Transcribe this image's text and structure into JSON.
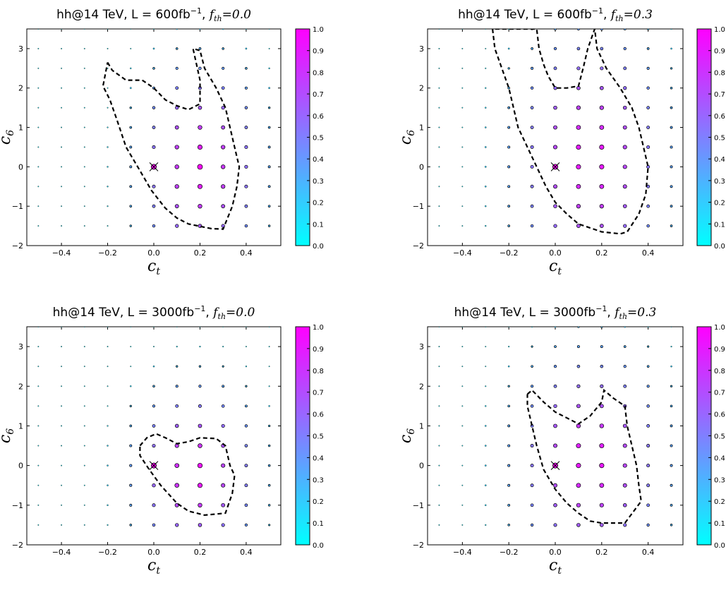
{
  "chart_data": [
    {
      "type": "scatter",
      "title": "hh@14 TeV, L = 600fb",
      "title_sup": "−1",
      "title_f": "f",
      "title_f_sub": "th",
      "title_f_value": "=0.0",
      "xlabel": "c",
      "xlabel_sub": "t",
      "ylabel": "c",
      "ylabel_sub": "6",
      "xlim": [
        -0.55,
        0.55
      ],
      "ylim": [
        -2,
        3.5
      ],
      "xticks": [
        -0.4,
        -0.2,
        0.0,
        0.2,
        0.4
      ],
      "xtick_labels": [
        "−0.4",
        "−0.2",
        "0.0",
        "0.2",
        "0.4"
      ],
      "yticks": [
        -2,
        -1,
        0,
        1,
        2,
        3
      ],
      "ytick_labels": [
        "−2",
        "−1",
        "0",
        "1",
        "2",
        "3"
      ],
      "colorbar": {
        "range": [
          0,
          1
        ],
        "ticks": [
          "0.0",
          "0.1",
          "0.2",
          "0.3",
          "0.4",
          "0.5",
          "0.6",
          "0.7",
          "0.8",
          "0.9",
          "1.0"
        ],
        "colormap": [
          "#00ffff",
          "#ff00ff"
        ]
      },
      "grid_x": [
        -0.5,
        -0.4,
        -0.3,
        -0.2,
        -0.1,
        0.0,
        0.1,
        0.2,
        0.3,
        0.4,
        0.5
      ],
      "grid_y": [
        -1.5,
        -1.0,
        -0.5,
        0.0,
        0.5,
        1.0,
        1.5,
        2.0,
        2.5,
        3.0,
        3.5
      ],
      "sm_point": [
        0,
        0
      ],
      "center": [
        0.2,
        0
      ],
      "radius": [
        0.25,
        2.4
      ],
      "contour": [
        [
          -0.2,
          2.65
        ],
        [
          -0.18,
          2.45
        ],
        [
          -0.12,
          2.2
        ],
        [
          -0.05,
          2.2
        ],
        [
          0.0,
          2.0
        ],
        [
          0.05,
          1.7
        ],
        [
          0.1,
          1.55
        ],
        [
          0.15,
          1.45
        ],
        [
          0.2,
          1.6
        ],
        [
          0.2,
          2.2
        ],
        [
          0.17,
          3.0
        ],
        [
          0.2,
          2.95
        ],
        [
          0.22,
          2.5
        ],
        [
          0.27,
          2.0
        ],
        [
          0.31,
          1.5
        ],
        [
          0.33,
          1.0
        ],
        [
          0.35,
          0.5
        ],
        [
          0.37,
          0.0
        ],
        [
          0.36,
          -0.5
        ],
        [
          0.34,
          -1.0
        ],
        [
          0.3,
          -1.58
        ],
        [
          0.25,
          -1.57
        ],
        [
          0.15,
          -1.45
        ],
        [
          0.1,
          -1.3
        ],
        [
          0.05,
          -1.05
        ],
        [
          -0.01,
          -0.6
        ],
        [
          -0.06,
          -0.1
        ],
        [
          -0.12,
          0.5
        ],
        [
          -0.16,
          1.2
        ],
        [
          -0.19,
          1.7
        ],
        [
          -0.22,
          2.05
        ],
        [
          -0.2,
          2.65
        ]
      ]
    },
    {
      "type": "scatter",
      "title": "hh@14 TeV, L = 600fb",
      "title_sup": "−1",
      "title_f": "f",
      "title_f_sub": "th",
      "title_f_value": "=0.3",
      "xlabel": "c",
      "xlabel_sub": "t",
      "ylabel": "c",
      "ylabel_sub": "6",
      "xlim": [
        -0.55,
        0.55
      ],
      "ylim": [
        -2,
        3.5
      ],
      "xticks": [
        -0.4,
        -0.2,
        0.0,
        0.2,
        0.4
      ],
      "xtick_labels": [
        "−0.4",
        "−0.2",
        "0.0",
        "0.2",
        "0.4"
      ],
      "yticks": [
        -2,
        -1,
        0,
        1,
        2,
        3
      ],
      "ytick_labels": [
        "−2",
        "−1",
        "0",
        "1",
        "2",
        "3"
      ],
      "colorbar": {
        "range": [
          0,
          1
        ],
        "ticks": [
          "0.0",
          "0.1",
          "0.2",
          "0.3",
          "0.4",
          "0.5",
          "0.6",
          "0.7",
          "0.8",
          "0.9",
          "1.0"
        ],
        "colormap": [
          "#00ffff",
          "#ff00ff"
        ]
      },
      "grid_x": [
        -0.5,
        -0.4,
        -0.3,
        -0.2,
        -0.1,
        0.0,
        0.1,
        0.2,
        0.3,
        0.4,
        0.5
      ],
      "grid_y": [
        -1.5,
        -1.0,
        -0.5,
        0.0,
        0.5,
        1.0,
        1.5,
        2.0,
        2.5,
        3.0,
        3.5
      ],
      "sm_point": [
        0,
        0
      ],
      "center": [
        0.15,
        0.2
      ],
      "radius": [
        0.3,
        3.0
      ],
      "contour": [
        [
          -0.27,
          3.5
        ],
        [
          -0.26,
          3.0
        ],
        [
          -0.23,
          2.5
        ],
        [
          -0.2,
          2.0
        ],
        [
          -0.18,
          1.5
        ],
        [
          -0.16,
          1.0
        ],
        [
          -0.12,
          0.5
        ],
        [
          -0.08,
          0.0
        ],
        [
          -0.04,
          -0.5
        ],
        [
          0.0,
          -0.9
        ],
        [
          0.05,
          -1.2
        ],
        [
          0.1,
          -1.45
        ],
        [
          0.2,
          -1.65
        ],
        [
          0.28,
          -1.7
        ],
        [
          0.31,
          -1.65
        ],
        [
          0.36,
          -1.2
        ],
        [
          0.39,
          -0.7
        ],
        [
          0.4,
          0.0
        ],
        [
          0.38,
          0.5
        ],
        [
          0.36,
          1.0
        ],
        [
          0.33,
          1.5
        ],
        [
          0.28,
          2.0
        ],
        [
          0.22,
          2.5
        ],
        [
          0.18,
          3.0
        ],
        [
          0.17,
          3.5
        ],
        [
          0.14,
          3.0
        ],
        [
          0.12,
          2.5
        ],
        [
          0.1,
          2.05
        ],
        [
          0.05,
          2.0
        ],
        [
          0.0,
          2.0
        ],
        [
          -0.03,
          2.3
        ],
        [
          -0.05,
          2.6
        ],
        [
          -0.07,
          3.0
        ],
        [
          -0.08,
          3.5
        ],
        [
          -0.27,
          3.5
        ]
      ]
    },
    {
      "type": "scatter",
      "title": "hh@14 TeV, L = 3000fb",
      "title_sup": "−1",
      "title_f": "f",
      "title_f_sub": "th",
      "title_f_value": "=0.0",
      "xlabel": "c",
      "xlabel_sub": "t",
      "ylabel": "c",
      "ylabel_sub": "6",
      "xlim": [
        -0.55,
        0.55
      ],
      "ylim": [
        -2,
        3.5
      ],
      "xticks": [
        -0.4,
        -0.2,
        0.0,
        0.2,
        0.4
      ],
      "xtick_labels": [
        "−0.4",
        "−0.2",
        "0.0",
        "0.2",
        "0.4"
      ],
      "yticks": [
        -2,
        -1,
        0,
        1,
        2,
        3
      ],
      "ytick_labels": [
        "−2",
        "−1",
        "0",
        "1",
        "2",
        "3"
      ],
      "colorbar": {
        "range": [
          0,
          1
        ],
        "ticks": [
          "0.0",
          "0.1",
          "0.2",
          "0.3",
          "0.4",
          "0.5",
          "0.6",
          "0.7",
          "0.8",
          "0.9",
          "1.0"
        ],
        "colormap": [
          "#00ffff",
          "#ff00ff"
        ]
      },
      "grid_x": [
        -0.5,
        -0.4,
        -0.3,
        -0.2,
        -0.1,
        0.0,
        0.1,
        0.2,
        0.3,
        0.4,
        0.5
      ],
      "grid_y": [
        -1.5,
        -1.0,
        -0.5,
        0.0,
        0.5,
        1.0,
        1.5,
        2.0,
        2.5,
        3.0,
        3.5
      ],
      "sm_point": [
        0,
        0
      ],
      "center": [
        0.18,
        -0.2
      ],
      "radius": [
        0.25,
        2.0
      ],
      "contour": [
        [
          -0.06,
          0.5
        ],
        [
          -0.03,
          0.7
        ],
        [
          0.01,
          0.8
        ],
        [
          0.05,
          0.7
        ],
        [
          0.1,
          0.55
        ],
        [
          0.15,
          0.6
        ],
        [
          0.2,
          0.7
        ],
        [
          0.27,
          0.68
        ],
        [
          0.31,
          0.5
        ],
        [
          0.33,
          0.0
        ],
        [
          0.35,
          -0.25
        ],
        [
          0.34,
          -0.7
        ],
        [
          0.31,
          -1.2
        ],
        [
          0.22,
          -1.25
        ],
        [
          0.15,
          -1.15
        ],
        [
          0.1,
          -0.95
        ],
        [
          0.03,
          -0.5
        ],
        [
          -0.02,
          -0.1
        ],
        [
          -0.06,
          0.25
        ],
        [
          -0.06,
          0.5
        ]
      ]
    },
    {
      "type": "scatter",
      "title": "hh@14 TeV, L = 3000fb",
      "title_sup": "−1",
      "title_f": "f",
      "title_f_sub": "th",
      "title_f_value": "=0.3",
      "xlabel": "c",
      "xlabel_sub": "t",
      "ylabel": "c",
      "ylabel_sub": "6",
      "xlim": [
        -0.55,
        0.55
      ],
      "ylim": [
        -2,
        3.5
      ],
      "xticks": [
        -0.4,
        -0.2,
        0.0,
        0.2,
        0.4
      ],
      "xtick_labels": [
        "−0.4",
        "−0.2",
        "0.0",
        "0.2",
        "0.4"
      ],
      "yticks": [
        -2,
        -1,
        0,
        1,
        2,
        3
      ],
      "ytick_labels": [
        "−2",
        "−1",
        "0",
        "1",
        "2",
        "3"
      ],
      "colorbar": {
        "range": [
          0,
          1
        ],
        "ticks": [
          "0.0",
          "0.1",
          "0.2",
          "0.3",
          "0.4",
          "0.5",
          "0.6",
          "0.7",
          "0.8",
          "0.9",
          "1.0"
        ],
        "colormap": [
          "#00ffff",
          "#ff00ff"
        ]
      },
      "grid_x": [
        -0.5,
        -0.4,
        -0.3,
        -0.2,
        -0.1,
        0.0,
        0.1,
        0.2,
        0.3,
        0.4,
        0.5
      ],
      "grid_y": [
        -1.5,
        -1.0,
        -0.5,
        0.0,
        0.5,
        1.0,
        1.5,
        2.0,
        2.5,
        3.0,
        3.5
      ],
      "sm_point": [
        0,
        0
      ],
      "center": [
        0.15,
        0.1
      ],
      "radius": [
        0.3,
        2.5
      ],
      "contour": [
        [
          -0.12,
          1.8
        ],
        [
          -0.1,
          1.9
        ],
        [
          -0.05,
          1.6
        ],
        [
          0.0,
          1.35
        ],
        [
          0.05,
          1.2
        ],
        [
          0.1,
          1.05
        ],
        [
          0.15,
          1.25
        ],
        [
          0.2,
          1.6
        ],
        [
          0.21,
          1.9
        ],
        [
          0.25,
          1.7
        ],
        [
          0.3,
          1.5
        ],
        [
          0.31,
          1.0
        ],
        [
          0.33,
          0.5
        ],
        [
          0.35,
          0.0
        ],
        [
          0.36,
          -0.5
        ],
        [
          0.37,
          -0.9
        ],
        [
          0.3,
          -1.45
        ],
        [
          0.2,
          -1.45
        ],
        [
          0.15,
          -1.4
        ],
        [
          0.1,
          -1.2
        ],
        [
          0.05,
          -0.95
        ],
        [
          0.0,
          -0.6
        ],
        [
          -0.05,
          -0.1
        ],
        [
          -0.08,
          0.5
        ],
        [
          -0.1,
          1.0
        ],
        [
          -0.12,
          1.5
        ],
        [
          -0.12,
          1.8
        ]
      ]
    }
  ]
}
